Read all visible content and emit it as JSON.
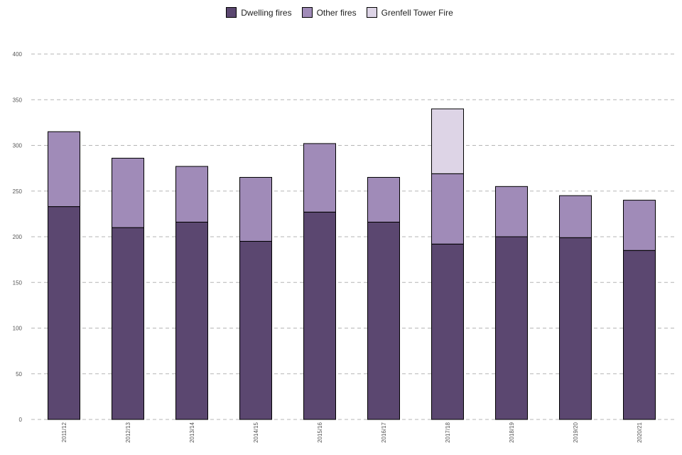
{
  "chart_data": {
    "type": "bar",
    "stacked": true,
    "title": "",
    "xlabel": "",
    "ylabel": "",
    "ylim": [
      0,
      400
    ],
    "yticks": [
      0,
      50,
      100,
      150,
      200,
      250,
      300,
      350,
      400
    ],
    "grid": true,
    "legend_position": "top-center",
    "categories": [
      "2011/12",
      "2012/13",
      "2013/14",
      "2014/15",
      "2015/16",
      "2016/17",
      "2017/18",
      "2018/19",
      "2019/20",
      "2020/21"
    ],
    "series": [
      {
        "name": "Dwelling fires",
        "color": "#5b4770",
        "values": [
          233,
          210,
          216,
          195,
          227,
          216,
          192,
          200,
          199,
          185
        ]
      },
      {
        "name": "Other fires",
        "color": "#a08bb8",
        "values": [
          82,
          76,
          61,
          70,
          75,
          49,
          77,
          55,
          46,
          55
        ]
      },
      {
        "name": "Grenfell Tower Fire",
        "color": "#ddd4e6",
        "values": [
          0,
          0,
          0,
          0,
          0,
          0,
          71,
          0,
          0,
          0
        ]
      }
    ]
  }
}
